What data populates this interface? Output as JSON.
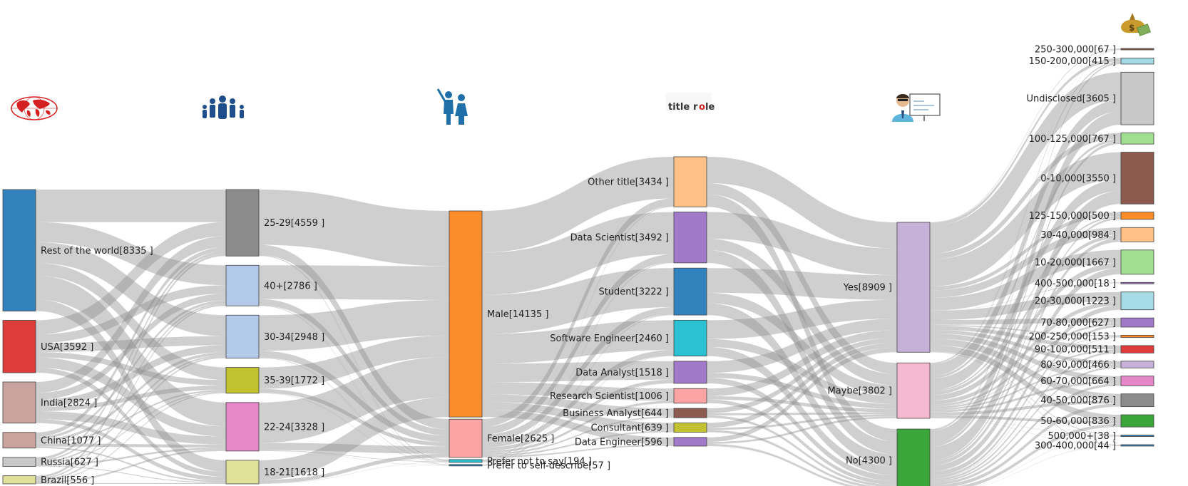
{
  "chart_data": {
    "type": "sankey",
    "columns": [
      {
        "icon": "world-map-icon",
        "nodes": [
          {
            "id": "world",
            "label": "Rest of the world[8335 ]",
            "value": 8335,
            "color": "#3182bd"
          },
          {
            "id": "usa",
            "label": "USA[3592 ]",
            "value": 3592,
            "color": "#de3b3b"
          },
          {
            "id": "india",
            "label": "India[2824 ]",
            "value": 2824,
            "color": "#c9a39d"
          },
          {
            "id": "china",
            "label": "China[1077 ]",
            "value": 1077,
            "color": "#c9a39d"
          },
          {
            "id": "russia",
            "label": "Russia[627 ]",
            "value": 627,
            "color": "#c8c8c8"
          },
          {
            "id": "brazil",
            "label": "Brazil[556 ]",
            "value": 556,
            "color": "#dfe09a"
          }
        ]
      },
      {
        "icon": "family-icon",
        "nodes": [
          {
            "id": "a2529",
            "label": "25-29[4559 ]",
            "value": 4559,
            "color": "#8c8c8c"
          },
          {
            "id": "a40",
            "label": "40+[2786 ]",
            "value": 2786,
            "color": "#b3c9ea"
          },
          {
            "id": "a3034",
            "label": "30-34[2948 ]",
            "value": 2948,
            "color": "#b3c9ea"
          },
          {
            "id": "a3539",
            "label": "35-39[1772 ]",
            "value": 1772,
            "color": "#c2c231"
          },
          {
            "id": "a2224",
            "label": "22-24[3328 ]",
            "value": 3328,
            "color": "#e587c8"
          },
          {
            "id": "a1821",
            "label": "18-21[1618 ]",
            "value": 1618,
            "color": "#dfe09a"
          }
        ]
      },
      {
        "icon": "gender-icon",
        "nodes": [
          {
            "id": "male",
            "label": "Male[14135 ]",
            "value": 14135,
            "color": "#fd8c2a"
          },
          {
            "id": "female",
            "label": "Female[2625 ]",
            "value": 2625,
            "color": "#fca3a3"
          },
          {
            "id": "pnts",
            "label": "Prefer not to say[194 ]",
            "value": 194,
            "color": "#2bc1d2"
          },
          {
            "id": "ptsd",
            "label": "Prefer to self-describe[57 ]",
            "value": 57,
            "color": "#3182bd"
          }
        ]
      },
      {
        "icon_label": "title role",
        "nodes": [
          {
            "id": "other",
            "label": "Other title[3434 ]",
            "value": 3434,
            "color": "#fdc087"
          },
          {
            "id": "ds",
            "label": "Data Scientist[3492 ]",
            "value": 3492,
            "color": "#a07ac9"
          },
          {
            "id": "student",
            "label": "Student[3222 ]",
            "value": 3222,
            "color": "#3182bd"
          },
          {
            "id": "se",
            "label": "Software Engineer[2460 ]",
            "value": 2460,
            "color": "#2bc1d2"
          },
          {
            "id": "da",
            "label": "Data Analyst[1518 ]",
            "value": 1518,
            "color": "#a07ac9"
          },
          {
            "id": "rs",
            "label": "Research Scientist[1006 ]",
            "value": 1006,
            "color": "#fca3a3"
          },
          {
            "id": "ba",
            "label": "Business Analyst[644 ]",
            "value": 644,
            "color": "#8c5a4e"
          },
          {
            "id": "cons",
            "label": "Consultant[639 ]",
            "value": 639,
            "color": "#c2c231"
          },
          {
            "id": "de",
            "label": "Data Engineer[596 ]",
            "value": 596,
            "color": "#a07ac9"
          }
        ]
      },
      {
        "icon": "data-analyst-icon",
        "nodes": [
          {
            "id": "yes",
            "label": "Yes[8909 ]",
            "value": 8909,
            "color": "#c6b1d9"
          },
          {
            "id": "maybe",
            "label": "Maybe[3802 ]",
            "value": 3802,
            "color": "#f6b9d2"
          },
          {
            "id": "no",
            "label": "No[4300 ]",
            "value": 4300,
            "color": "#3aa63a"
          }
        ]
      },
      {
        "icon": "money-bag-icon",
        "nodes": [
          {
            "id": "s250",
            "label": "250-300,000[67 ]",
            "value": 67,
            "color": "#8c5a4e"
          },
          {
            "id": "s150",
            "label": "150-200,000[415 ]",
            "value": 415,
            "color": "#a6dbe6"
          },
          {
            "id": "sund",
            "label": "Undisclosed[3605 ]",
            "value": 3605,
            "color": "#c8c8c8"
          },
          {
            "id": "s100",
            "label": "100-125,000[767 ]",
            "value": 767,
            "color": "#a0de90"
          },
          {
            "id": "s0",
            "label": "0-10,000[3550 ]",
            "value": 3550,
            "color": "#8c5a4e"
          },
          {
            "id": "s125",
            "label": "125-150,000[500 ]",
            "value": 500,
            "color": "#fd8c2a"
          },
          {
            "id": "s30",
            "label": "30-40,000[984 ]",
            "value": 984,
            "color": "#fdc087"
          },
          {
            "id": "s10",
            "label": "10-20,000[1667 ]",
            "value": 1667,
            "color": "#a0de90"
          },
          {
            "id": "s400",
            "label": "400-500,000[18 ]",
            "value": 18,
            "color": "#a07ac9"
          },
          {
            "id": "s20",
            "label": "20-30,000[1223 ]",
            "value": 1223,
            "color": "#a6dbe6"
          },
          {
            "id": "s70",
            "label": "70-80,000[627 ]",
            "value": 627,
            "color": "#a07ac9"
          },
          {
            "id": "s200",
            "label": "200-250,000[153 ]",
            "value": 153,
            "color": "#fd8c2a"
          },
          {
            "id": "s90",
            "label": "90-100,000[511 ]",
            "value": 511,
            "color": "#de3b3b"
          },
          {
            "id": "s80",
            "label": "80-90,000[466 ]",
            "value": 466,
            "color": "#c6b1d9"
          },
          {
            "id": "s60",
            "label": "60-70,000[664 ]",
            "value": 664,
            "color": "#e587c8"
          },
          {
            "id": "s40",
            "label": "40-50,000[876 ]",
            "value": 876,
            "color": "#8c8c8c"
          },
          {
            "id": "s50",
            "label": "50-60,000[836 ]",
            "value": 836,
            "color": "#3aa63a"
          },
          {
            "id": "s500",
            "label": "500,000+[38 ]",
            "value": 38,
            "color": "#3182bd"
          },
          {
            "id": "s300",
            "label": "300-400,000[44 ]",
            "value": 44,
            "color": "#3182bd"
          }
        ]
      }
    ],
    "link_color": "#8c8c8c"
  }
}
